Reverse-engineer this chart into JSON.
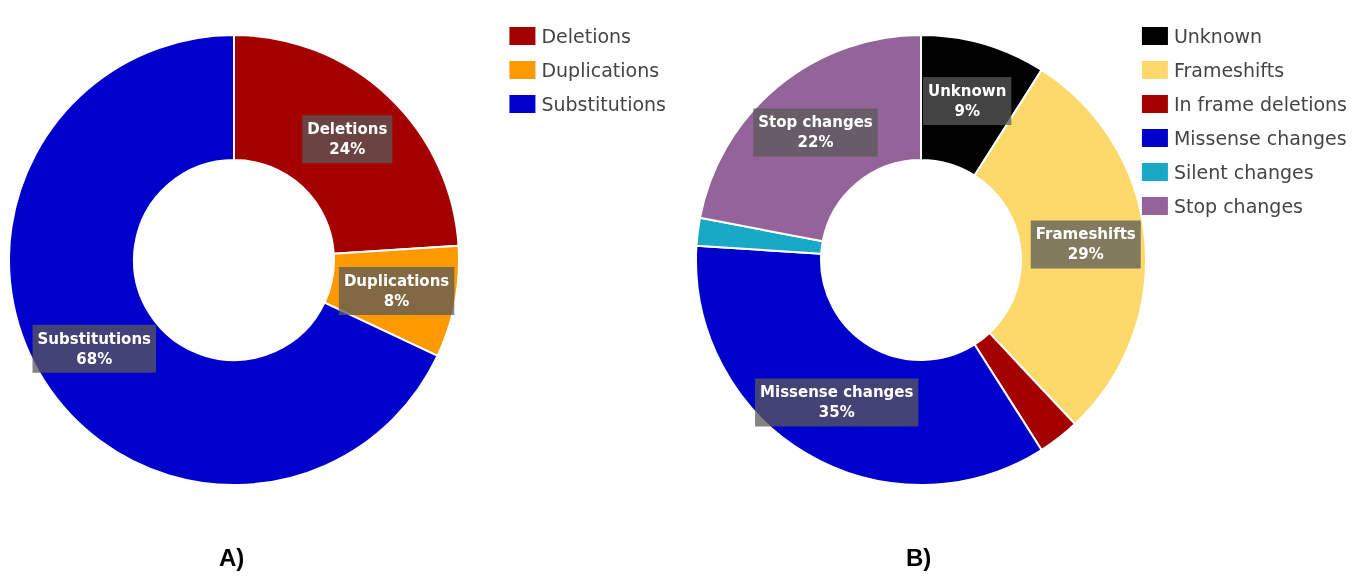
{
  "chart_data": [
    {
      "type": "donut",
      "categories": [
        "Deletions",
        "Duplications",
        "Substitutions"
      ],
      "values": [
        24,
        8,
        68
      ],
      "colors": [
        "#a50000",
        "#ff9900",
        "#0000cc"
      ],
      "value_labels": [
        "24%",
        "8%",
        "68%"
      ],
      "legend": "top right",
      "annotations": [
        "A)"
      ]
    },
    {
      "type": "donut",
      "categories": [
        "Unknown",
        "Frameshifts",
        "In frame deletions",
        "Missense changes",
        "Silent changes",
        "Stop changes"
      ],
      "values": [
        9,
        29,
        3,
        35,
        2,
        22
      ],
      "colors": [
        "#000000",
        "#fcd96a",
        "#a50000",
        "#0000cc",
        "#17a9c6",
        "#946399"
      ],
      "value_labels": [
        "9%",
        "29%",
        null,
        "35%",
        null,
        "22%"
      ],
      "legend": "top right",
      "annotations": [
        "B)"
      ]
    }
  ]
}
